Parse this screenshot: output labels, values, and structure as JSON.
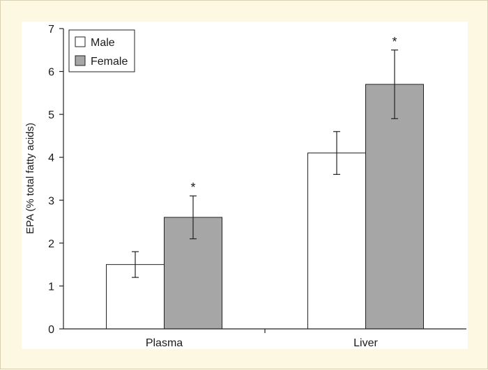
{
  "chart_data": {
    "type": "bar",
    "title": "",
    "xlabel": "",
    "ylabel": "EPA (% total fatty acids)",
    "ylim": [
      0,
      7
    ],
    "yticks": [
      0,
      1,
      2,
      3,
      4,
      5,
      6,
      7
    ],
    "categories": [
      "Plasma",
      "Liver"
    ],
    "series": [
      {
        "name": "Male",
        "color": "#ffffff",
        "values": [
          1.5,
          4.1
        ],
        "error": [
          0.3,
          0.5
        ],
        "significance": [
          "",
          ""
        ]
      },
      {
        "name": "Female",
        "color": "#a6a6a6",
        "values": [
          2.6,
          5.7
        ],
        "error": [
          0.5,
          0.8
        ],
        "significance": [
          "*",
          "*"
        ]
      }
    ],
    "legend": "top-left",
    "grid": false
  }
}
